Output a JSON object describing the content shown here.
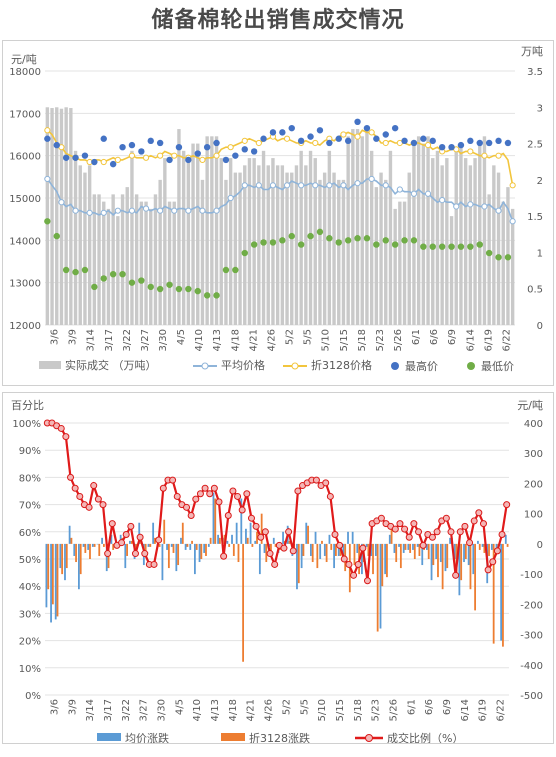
{
  "page": {
    "title": "储备棉轮出销售成交情况"
  },
  "chart_data": [
    {
      "type": "bar+line+scatter",
      "y_left_unit": "元/吨",
      "y_right_unit": "万吨",
      "ylim_left": [
        12000,
        18000
      ],
      "yticks_left": [
        "12000",
        "13000",
        "14000",
        "15000",
        "16000",
        "17000",
        "18000"
      ],
      "ylim_right": [
        0,
        3.5
      ],
      "yticks_right": [
        "0",
        "0.5",
        "1",
        "1.5",
        "2",
        "2.5",
        "3",
        "3.5"
      ],
      "x_tick_labels": [
        "3/6",
        "3/9",
        "3/14",
        "3/17",
        "3/22",
        "3/27",
        "3/30",
        "4/5",
        "4/10",
        "4/13",
        "4/18",
        "4/21",
        "4/26",
        "5/2",
        "5/5",
        "5/10",
        "5/15",
        "5/18",
        "5/23",
        "5/26",
        "6/1",
        "6/6",
        "6/9",
        "6/14",
        "6/19",
        "6/22"
      ],
      "legend": [
        "实际成交 （万吨）",
        "平均价格",
        "折3128价格",
        "最高价",
        "最低价"
      ],
      "legend_position": "bottom",
      "grid": true,
      "series": {
        "volume": [
          3.0,
          2.99,
          3.0,
          2.98,
          3.0,
          2.99,
          2.4,
          2.2,
          2.1,
          2.2,
          1.8,
          1.8,
          1.7,
          1.6,
          1.8,
          1.5,
          1.8,
          1.9,
          2.4,
          1.8,
          1.7,
          1.7,
          1.6,
          1.8,
          2.0,
          2.3,
          1.7,
          1.7,
          2.7,
          2.4,
          2.3,
          2.5,
          2.5,
          2.0,
          2.6,
          2.6,
          2.6,
          2.3,
          2.0,
          2.3,
          2.1,
          2.1,
          2.2,
          2.3,
          2.3,
          2.2,
          2.4,
          2.2,
          2.3,
          2.2,
          2.2,
          2.1,
          2.1,
          2.2,
          2.4,
          2.2,
          2.4,
          2.3,
          2.0,
          2.1,
          2.4,
          2.1,
          2.0,
          2.0,
          2.6,
          2.7,
          2.7,
          2.6,
          2.7,
          2.4,
          1.9,
          2.1,
          2.0,
          2.4,
          1.6,
          1.7,
          1.7,
          2.1,
          2.5,
          2.6,
          2.5,
          2.6,
          2.3,
          2.4,
          2.2,
          2.3,
          1.5,
          2.4,
          2.5,
          2.3,
          2.2,
          2.3,
          2.5,
          2.6,
          1.8,
          2.2,
          2.1,
          1.7,
          1.9,
          1.6
        ],
        "avg_price": [
          15450,
          15300,
          15150,
          14900,
          14800,
          14850,
          14700,
          14700,
          14650,
          14650,
          14650,
          14600,
          14650,
          14700,
          14600,
          14700,
          14700,
          14650,
          14700,
          14650,
          14800,
          14750,
          14700,
          14750,
          14700,
          14800,
          14750,
          14700,
          14750,
          14750,
          14700,
          14750,
          14800,
          14700,
          14650,
          14650,
          14700,
          14800,
          14850,
          15000,
          15050,
          15150,
          15300,
          15300,
          15250,
          15300,
          15200,
          15200,
          15300,
          15250,
          15200,
          15300,
          15400,
          15350,
          15300,
          15300,
          15350,
          15300,
          15300,
          15250,
          15300,
          15350,
          15250,
          15300,
          15200,
          15300,
          15350,
          15350,
          15450,
          15450,
          15400,
          15300,
          15300,
          15250,
          15100,
          15200,
          15150,
          15150,
          15100,
          15200,
          15100,
          15100,
          15000,
          14900,
          14950,
          14900,
          14900,
          14800,
          14900,
          14800,
          14850,
          14850,
          14800,
          14800,
          14850,
          14750,
          14700,
          14900,
          14750,
          14450
        ],
        "price_3128": [
          16600,
          16500,
          16300,
          16200,
          16050,
          16000,
          15950,
          15900,
          15900,
          15850,
          15900,
          15900,
          15850,
          15900,
          15950,
          15900,
          15900,
          15950,
          16000,
          15950,
          15950,
          15950,
          16000,
          15950,
          16000,
          16100,
          16050,
          16000,
          16000,
          15950,
          15950,
          16000,
          15950,
          15900,
          15950,
          15950,
          16000,
          16150,
          16200,
          16200,
          16250,
          16300,
          16350,
          16400,
          16350,
          16300,
          16350,
          16400,
          16450,
          16350,
          16400,
          16400,
          16350,
          16300,
          16300,
          16350,
          16300,
          16300,
          16250,
          16350,
          16400,
          16350,
          16450,
          16500,
          16550,
          16500,
          16450,
          16600,
          16550,
          16550,
          16450,
          16300,
          16300,
          16350,
          16300,
          16300,
          16300,
          16250,
          16300,
          16300,
          16250,
          16250,
          16150,
          16200,
          16100,
          16100,
          16150,
          16150,
          16050,
          16100,
          16100,
          16050,
          16000,
          16000,
          15950,
          16000,
          16000,
          16050,
          15900,
          15300
        ],
        "max_price": [
          16400,
          16550,
          16250,
          16350,
          15950,
          16000,
          15950,
          16100,
          16000,
          16200,
          15850,
          16100,
          16400,
          16100,
          15800,
          16200,
          16200,
          16250,
          16250,
          16150,
          16100,
          16200,
          16350,
          16050,
          16300,
          16300,
          15900,
          15850,
          16200,
          15950,
          15900,
          15850,
          16050,
          16100,
          16200,
          16100,
          16300,
          15850,
          15900,
          15800,
          16000,
          16100,
          16150,
          16050,
          16100,
          16300,
          16400,
          16300,
          16550,
          16450,
          16550,
          16700,
          16650,
          16650,
          16350,
          16150,
          16450,
          16350,
          16600,
          16400,
          16300,
          16200,
          16400,
          16350,
          16350,
          16600,
          16800,
          16500,
          16650,
          16600,
          16400,
          16600,
          16500,
          16700,
          16650,
          16350,
          16350,
          16350,
          16300,
          16250,
          16400,
          16400,
          16350,
          16100,
          16200,
          16350,
          16200,
          16300,
          16250,
          16200,
          16350,
          16350,
          16300,
          16250,
          16300,
          16300,
          16350,
          16350,
          16300,
          16250
        ],
        "min_price": [
          14450,
          14200,
          14100,
          13800,
          13300,
          13300,
          13250,
          13100,
          13300,
          13100,
          12900,
          13000,
          13100,
          13100,
          13200,
          13200,
          13200,
          13050,
          13000,
          13100,
          13050,
          12950,
          12900,
          13050,
          12850,
          12900,
          12950,
          12900,
          12850,
          12850,
          12850,
          12800,
          12800,
          12700,
          12700,
          12550,
          12700,
          12900,
          13300,
          13350,
          13300,
          13500,
          13700,
          13700,
          13900,
          14000,
          13950,
          14000,
          13950,
          14000,
          14000,
          13900,
          14100,
          13950,
          13900,
          14050,
          14100,
          14150,
          14200,
          14300,
          14050,
          13850,
          13950,
          14100,
          14000,
          14000,
          14050,
          14000,
          14050,
          14000,
          13900,
          13450,
          14000,
          13950,
          13900,
          14100,
          14000,
          14100,
          14000,
          13900,
          13850,
          13900,
          13850,
          13900,
          13850,
          13950,
          13850,
          13900,
          13850,
          13900,
          13850,
          13850,
          13900,
          13850,
          13700,
          13650,
          13600,
          13650,
          13600,
          13600
        ]
      }
    },
    {
      "type": "bar+line",
      "y_left_unit": "百分比",
      "y_right_unit": "元/吨",
      "ylim_left": [
        0,
        100
      ],
      "yticks_left": [
        "0%",
        "10%",
        "20%",
        "30%",
        "40%",
        "50%",
        "60%",
        "70%",
        "80%",
        "90%",
        "100%"
      ],
      "ylim_right": [
        -500,
        400
      ],
      "yticks_right": [
        "-500",
        "-400",
        "-300",
        "-200",
        "-100",
        "0",
        "100",
        "200",
        "300",
        "400"
      ],
      "x_tick_labels": [
        "3/6",
        "3/9",
        "3/14",
        "3/17",
        "3/22",
        "3/27",
        "3/30",
        "4/5",
        "4/10",
        "4/13",
        "4/18",
        "4/21",
        "4/26",
        "5/2",
        "5/5",
        "5/10",
        "5/15",
        "5/18",
        "5/23",
        "5/26",
        "6/1",
        "6/6",
        "6/9",
        "6/14",
        "6/19",
        "6/22"
      ],
      "legend": [
        "均价涨跌",
        "折3128涨跌",
        "成交比例（%）"
      ],
      "legend_position": "bottom",
      "grid": true,
      "series": {
        "avg_change": [
          -210,
          -260,
          -250,
          -80,
          -120,
          60,
          -40,
          -150,
          -10,
          -20,
          -10,
          0,
          20,
          -90,
          30,
          0,
          30,
          -80,
          10,
          -50,
          70,
          -70,
          -10,
          70,
          -10,
          -120,
          -20,
          -10,
          -90,
          20,
          -20,
          -20,
          -100,
          -60,
          -30,
          -10,
          170,
          30,
          20,
          10,
          30,
          70,
          150,
          50,
          70,
          10,
          -100,
          -30,
          -10,
          20,
          -30,
          40,
          60,
          -40,
          -150,
          -80,
          70,
          -40,
          40,
          -50,
          -40,
          30,
          -80,
          -40,
          -50,
          40,
          40,
          -30,
          -100,
          -10,
          -40,
          -40,
          -280,
          -100,
          30,
          -30,
          -10,
          -30,
          -20,
          -20,
          -10,
          -70,
          -20,
          -120,
          -50,
          -60,
          -90,
          20,
          -50,
          -170,
          -60,
          -70,
          -100,
          10,
          -10,
          -130,
          -20,
          -20,
          -320,
          30
        ],
        "change_3128": [
          -150,
          -200,
          -240,
          -100,
          -80,
          20,
          -60,
          -100,
          -30,
          -50,
          -10,
          -40,
          -10,
          -80,
          -20,
          -10,
          20,
          -40,
          10,
          -20,
          30,
          -30,
          -10,
          20,
          -10,
          80,
          -80,
          -30,
          -70,
          70,
          -10,
          10,
          -20,
          -50,
          -40,
          20,
          150,
          20,
          30,
          -10,
          -40,
          -60,
          -390,
          20,
          -10,
          40,
          100,
          -60,
          -40,
          -10,
          -20,
          10,
          10,
          -30,
          -130,
          -40,
          60,
          -60,
          -80,
          10,
          -60,
          -20,
          -40,
          -40,
          -90,
          -160,
          -70,
          -100,
          -60,
          -40,
          -100,
          -290,
          -140,
          -110,
          60,
          -60,
          -80,
          -20,
          -30,
          -50,
          -40,
          -20,
          -50,
          -70,
          -110,
          -150,
          -80,
          20,
          -110,
          -120,
          -50,
          -150,
          -220,
          -20,
          -30,
          -40,
          -330,
          -20,
          -340,
          -10
        ],
        "ratio_pct": [
          100,
          100,
          99,
          98,
          95,
          80,
          76,
          73,
          70,
          69,
          77,
          72,
          70,
          52,
          63,
          55,
          56,
          59,
          62,
          52,
          58,
          52,
          48,
          48,
          57,
          76,
          79,
          79,
          73,
          70,
          69,
          66,
          72,
          74,
          76,
          74,
          76,
          71,
          51,
          66,
          75,
          73,
          68,
          74,
          65,
          62,
          58,
          60,
          52,
          48,
          55,
          54,
          60,
          53,
          75,
          77,
          78,
          79,
          79,
          77,
          78,
          73,
          59,
          55,
          50,
          48,
          44,
          48,
          54,
          42,
          63,
          64,
          65,
          63,
          62,
          61,
          63,
          61,
          58,
          63,
          60,
          55,
          59,
          58,
          60,
          64,
          65,
          60,
          44,
          60,
          62,
          56,
          64,
          67,
          63,
          46,
          49,
          53,
          59,
          70
        ]
      }
    }
  ]
}
